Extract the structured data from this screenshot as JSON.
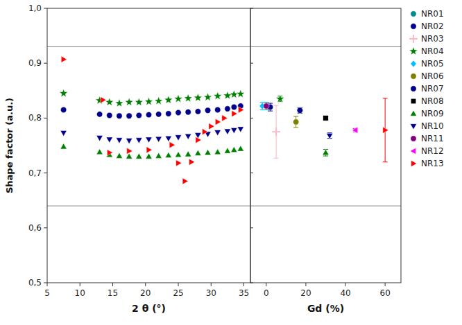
{
  "chart_data": [
    {
      "type": "scatter",
      "xlabel": "2 θ (°)",
      "ylabel": "Shape factor (a.u.)",
      "xlim": [
        5,
        36
      ],
      "xticks": [
        5,
        10,
        15,
        20,
        25,
        30,
        35
      ],
      "ylim": [
        0.5,
        1.0
      ],
      "yticks": [
        {
          "value": 0.5,
          "label": "0,5"
        },
        {
          "value": 0.6,
          "label": "0,6"
        },
        {
          "value": 0.7,
          "label": "0,7"
        },
        {
          "value": 0.8,
          "label": "0,8"
        },
        {
          "value": 0.9,
          "label": "0,9"
        },
        {
          "value": 1.0,
          "label": "1,0"
        }
      ],
      "reference_lines": [
        0.93,
        0.64
      ],
      "grid": false,
      "legend": false,
      "series": [
        {
          "name": "NR04",
          "color": "#008000",
          "marker": "star",
          "x": [
            7.5,
            13.0,
            14.5,
            16.0,
            17.5,
            19.0,
            20.5,
            22.0,
            23.5,
            25.0,
            26.5,
            28.0,
            29.5,
            31.0,
            32.5,
            33.5,
            34.5
          ],
          "values": [
            0.845,
            0.832,
            0.829,
            0.827,
            0.829,
            0.829,
            0.83,
            0.831,
            0.833,
            0.835,
            0.836,
            0.837,
            0.838,
            0.84,
            0.841,
            0.843,
            0.844
          ]
        },
        {
          "name": "NR07",
          "color": "#00008B",
          "marker": "circle",
          "x": [
            7.5,
            13.0,
            14.5,
            16.0,
            17.5,
            19.0,
            20.5,
            22.0,
            23.5,
            25.0,
            26.5,
            28.0,
            29.5,
            31.0,
            32.5,
            33.5,
            34.5
          ],
          "values": [
            0.815,
            0.807,
            0.805,
            0.804,
            0.804,
            0.805,
            0.806,
            0.807,
            0.808,
            0.81,
            0.811,
            0.812,
            0.814,
            0.815,
            0.817,
            0.82,
            0.822
          ]
        },
        {
          "name": "NR09",
          "color": "#008000",
          "marker": "triangle-up",
          "x": [
            7.5,
            13.0,
            14.5,
            16.0,
            17.5,
            19.0,
            20.5,
            22.0,
            23.5,
            25.0,
            26.5,
            28.0,
            29.5,
            31.0,
            32.5,
            33.5,
            34.5
          ],
          "values": [
            0.748,
            0.738,
            0.733,
            0.731,
            0.73,
            0.73,
            0.73,
            0.731,
            0.732,
            0.733,
            0.734,
            0.736,
            0.737,
            0.738,
            0.74,
            0.742,
            0.744
          ]
        },
        {
          "name": "NR10",
          "color": "#00008B",
          "marker": "triangle-down",
          "x": [
            7.5,
            13.0,
            14.5,
            16.0,
            17.5,
            19.0,
            20.5,
            22.0,
            23.5,
            25.0,
            26.5,
            28.0,
            29.5,
            31.0,
            32.5,
            33.5,
            34.5
          ],
          "values": [
            0.773,
            0.764,
            0.761,
            0.76,
            0.759,
            0.76,
            0.761,
            0.762,
            0.763,
            0.765,
            0.767,
            0.769,
            0.771,
            0.774,
            0.776,
            0.778,
            0.78
          ]
        },
        {
          "name": "NR13",
          "color": "#FF0000",
          "marker": "triangle-right",
          "x": [
            7.5,
            13.5,
            14.5,
            17.5,
            20.5,
            24.0,
            25.0,
            26.0,
            27.0,
            28.0,
            29.0,
            30.0,
            31.0,
            32.0,
            33.5,
            34.5
          ],
          "values": [
            0.907,
            0.833,
            0.737,
            0.74,
            0.742,
            0.751,
            0.718,
            0.685,
            0.72,
            0.76,
            0.775,
            0.785,
            0.793,
            0.8,
            0.808,
            0.815
          ]
        }
      ]
    },
    {
      "type": "scatter",
      "xlabel": "Gd (%)",
      "xlim": [
        -8,
        68
      ],
      "xticks": [
        0,
        20,
        40,
        60
      ],
      "ylim": [
        0.5,
        1.0
      ],
      "yticks": [
        0.5,
        0.6,
        0.7,
        0.8,
        0.9,
        1.0
      ],
      "tick_labels": "x",
      "reference_lines": [
        0.93,
        0.64
      ],
      "grid": false,
      "legend": "right",
      "series": [
        {
          "name": "NR01",
          "color": "#008B8B",
          "marker": "circle",
          "x": [
            0
          ],
          "values": [
            0.822
          ],
          "errors": [
            0.007
          ]
        },
        {
          "name": "NR02",
          "color": "#00008B",
          "marker": "circle",
          "x": [
            2
          ],
          "values": [
            0.82
          ],
          "errors": [
            0.007
          ]
        },
        {
          "name": "NR03",
          "color": "#FFB6C1",
          "marker": "plus",
          "x": [
            5
          ],
          "values": [
            0.775
          ],
          "errors": [
            0.048
          ]
        },
        {
          "name": "NR04",
          "color": "#008000",
          "marker": "star",
          "x": [
            7
          ],
          "values": [
            0.835
          ],
          "errors": [
            0.005
          ]
        },
        {
          "name": "NR05",
          "color": "#00BFFF",
          "marker": "diamond",
          "x": [
            -2
          ],
          "values": [
            0.822
          ],
          "errors": [
            0.007
          ]
        },
        {
          "name": "NR06",
          "color": "#808000",
          "marker": "circle",
          "x": [
            15
          ],
          "values": [
            0.793
          ],
          "errors": [
            0.01
          ]
        },
        {
          "name": "NR07",
          "color": "#00008B",
          "marker": "circle",
          "x": [
            17
          ],
          "values": [
            0.814
          ],
          "errors": [
            0.005
          ]
        },
        {
          "name": "NR08",
          "color": "#000000",
          "marker": "square",
          "x": [
            30
          ],
          "values": [
            0.8
          ],
          "errors": [
            0.003
          ]
        },
        {
          "name": "NR09",
          "color": "#008000",
          "marker": "triangle-up",
          "x": [
            30
          ],
          "values": [
            0.737
          ],
          "errors": [
            0.006
          ]
        },
        {
          "name": "NR10",
          "color": "#00008B",
          "marker": "triangle-down",
          "x": [
            32
          ],
          "values": [
            0.768
          ],
          "errors": [
            0.005
          ]
        },
        {
          "name": "NR11",
          "color": "#800080",
          "marker": "circle",
          "x": [
            0
          ],
          "values": [
            0.822
          ],
          "errors": [
            0.003
          ]
        },
        {
          "name": "NR12",
          "color": "#FF00FF",
          "marker": "triangle-left",
          "x": [
            45
          ],
          "values": [
            0.778
          ],
          "errors": [
            0.003
          ]
        },
        {
          "name": "NR13",
          "color": "#FF0000",
          "marker": "triangle-right",
          "x": [
            60
          ],
          "values": [
            0.778
          ],
          "errors": [
            0.058
          ]
        }
      ]
    }
  ]
}
